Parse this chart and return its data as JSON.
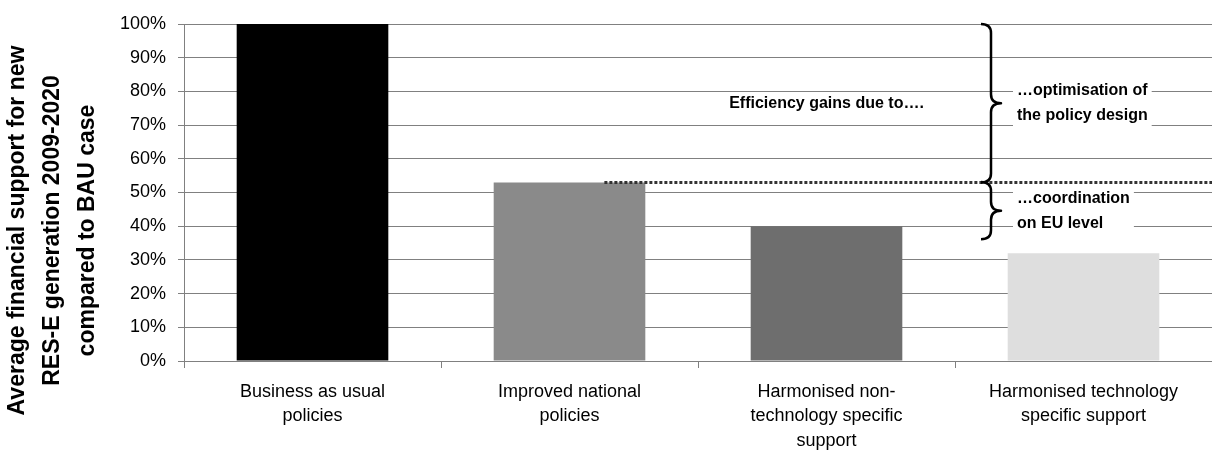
{
  "chart_data": {
    "type": "bar",
    "ylabel": "Average financial support for new RES-E generation 2009-2020 compared to BAU case",
    "categories": [
      "Business as usual policies",
      "Improved national policies",
      "Harmonised non-technology specific support",
      "Harmonised technology specific support"
    ],
    "values": [
      100,
      53,
      40,
      32
    ],
    "colors": [
      "#000000",
      "#8a8a8a",
      "#6e6e6e",
      "#dedede"
    ],
    "ylim": [
      0,
      100
    ],
    "yticks": [
      {
        "value": 0,
        "label": "0%"
      },
      {
        "value": 10,
        "label": "10%"
      },
      {
        "value": 20,
        "label": "20%"
      },
      {
        "value": 30,
        "label": "30%"
      },
      {
        "value": 40,
        "label": "40%"
      },
      {
        "value": 50,
        "label": "50%"
      },
      {
        "value": 60,
        "label": "60%"
      },
      {
        "value": 70,
        "label": "70%"
      },
      {
        "value": 80,
        "label": "80%"
      },
      {
        "value": 90,
        "label": "90%"
      },
      {
        "value": 100,
        "label": "100%"
      }
    ],
    "grid": "y",
    "ref_lines": [
      {
        "axis": "y",
        "value": 53,
        "color": "#333333",
        "line_style": "dotted"
      }
    ],
    "annotations": [
      "Efficiency gains due to….",
      "…optimisation of the policy design",
      "…coordination on EU level"
    ]
  }
}
